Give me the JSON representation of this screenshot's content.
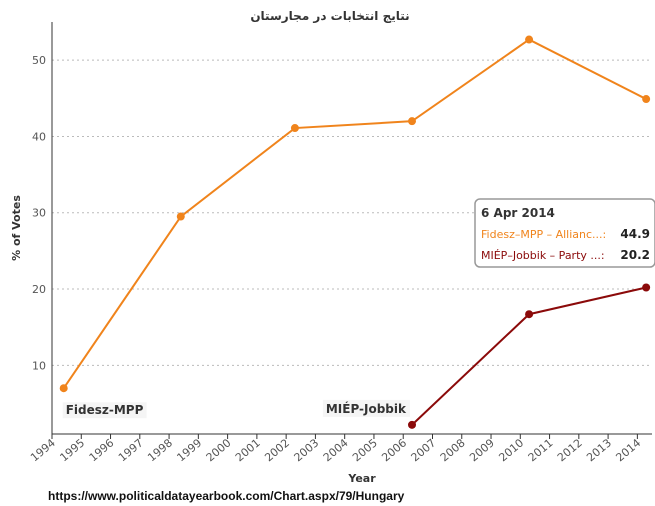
{
  "chart_data": {
    "type": "line",
    "title": "نتایج انتخابات در مجارستان",
    "y_label": "% of Votes",
    "x_label": "Year",
    "source": "https://www.politicaldatayearbook.com/Chart.aspx/79/Hungary",
    "xlim": [
      1994,
      2014.5
    ],
    "xticks": [
      1994,
      1995,
      1996,
      1997,
      1998,
      1999,
      2000,
      2001,
      2002,
      2003,
      2004,
      2005,
      2006,
      2007,
      2008,
      2009,
      2010,
      2011,
      2012,
      2013,
      2014
    ],
    "ylim": [
      1,
      55
    ],
    "yticks": [
      10,
      20,
      30,
      40,
      50
    ],
    "grid": true,
    "series": [
      {
        "name": "Fidesz-MPP",
        "color": "#f0841c",
        "x": [
          1994.4,
          1998.4,
          2002.3,
          2006.3,
          2010.3,
          2014.3
        ],
        "values": [
          7.0,
          29.5,
          41.1,
          42.0,
          52.7,
          44.9
        ]
      },
      {
        "name": "MIÉP-Jobbik",
        "color": "#8b0a0a",
        "x": [
          2006.3,
          2010.3,
          2014.3
        ],
        "values": [
          2.2,
          16.7,
          20.2
        ]
      }
    ],
    "tooltip": {
      "title": "6 Apr 2014",
      "rows": [
        "Fidesz–MPP – Allianc...:",
        "MIÉP–Jobbik – Party ...:"
      ]
    }
  }
}
